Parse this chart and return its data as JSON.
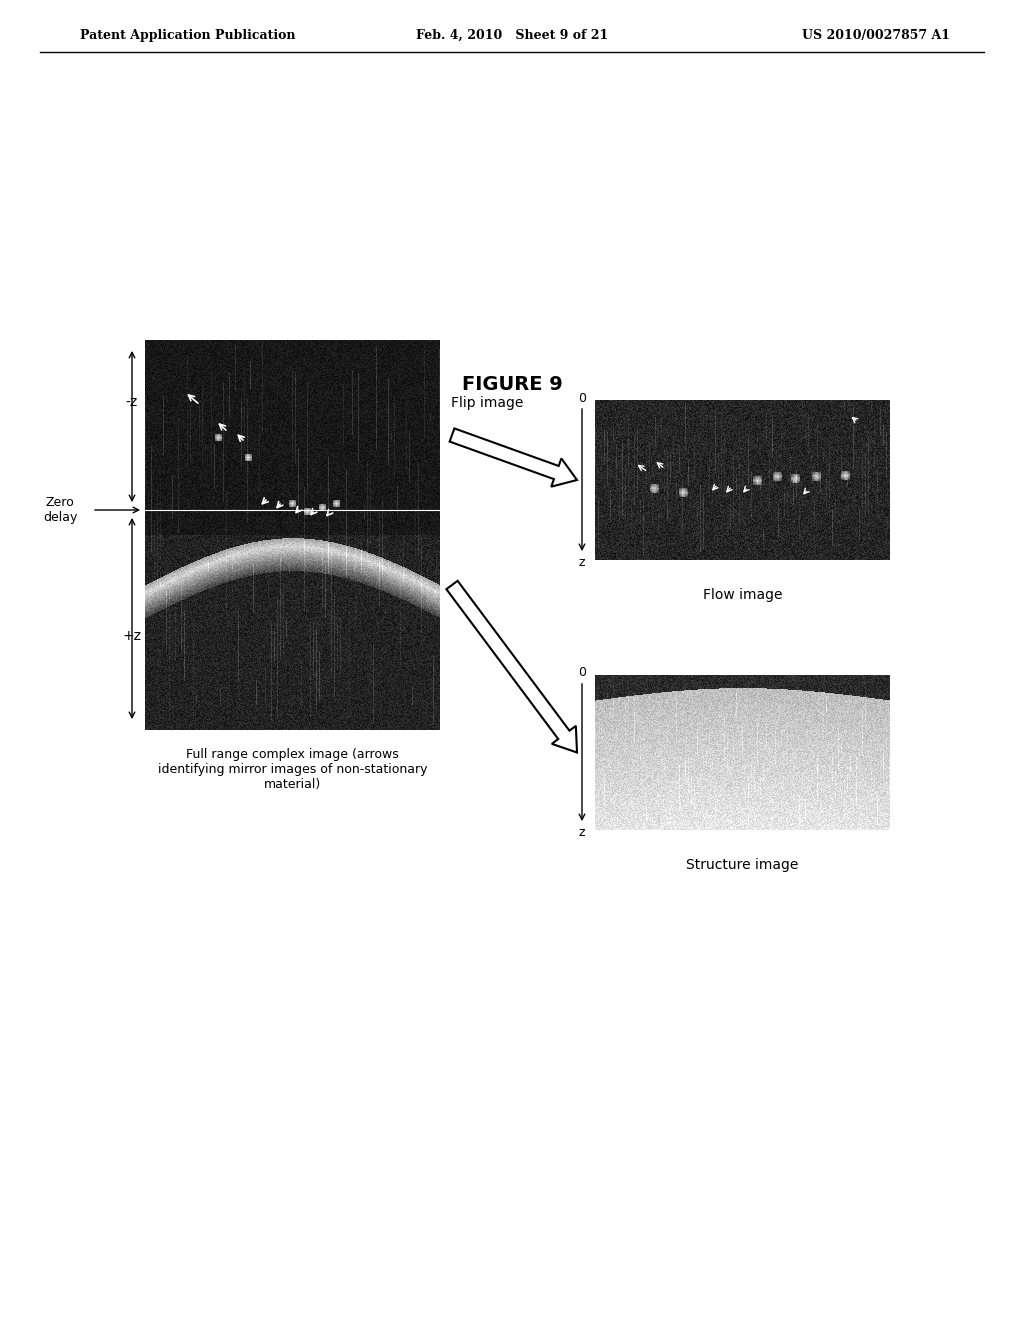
{
  "bg_color": "#ffffff",
  "header_left": "Patent Application Publication",
  "header_center": "Feb. 4, 2010   Sheet 9 of 21",
  "header_right": "US 2010/0027857 A1",
  "figure_label": "FIGURE 9",
  "main_image_caption": "Full range complex image (arrows\nidentifying mirror images of non-stationary\nmaterial)",
  "flow_image_label": "Flow image",
  "structure_image_label": "Structure image",
  "flip_image_label": "Flip image",
  "zero_delay_label": "Zero\ndelay",
  "neg_z_label": "-z",
  "pos_z_label": "+z",
  "z_label_flow": "z",
  "zero_label_flow": "0",
  "z_label_struct": "z",
  "zero_label_struct": "0"
}
